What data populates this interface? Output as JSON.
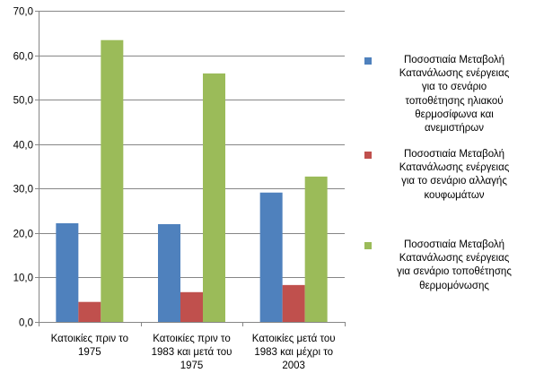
{
  "chart_data": {
    "type": "bar",
    "categories": [
      [
        "Κατοικίες πριν το",
        "1975"
      ],
      [
        "Κατοικίες πριν το",
        "1983 και μετά του",
        "1975"
      ],
      [
        "Κατοικίες μετά του",
        "1983 και μέχρι το",
        "2003"
      ]
    ],
    "series": [
      {
        "name": "Ποσοστιαία Μεταβολή Κατανάλωσης ενέργειας για το σενάριο τοποθέτησης ηλιακού θερμοσίφωνα και ανεμιστήρων",
        "name_lines": [
          "Ποσοστιαία Μεταβολή",
          "Κατανάλωσης ενέργειας",
          "για το σενάριο",
          "τοποθέτησης ηλιακού",
          "θερμοσίφωνα και",
          "ανεμιστήρων"
        ],
        "color": "#4F81BD",
        "values": [
          22.2,
          22.0,
          29.1
        ]
      },
      {
        "name": "Ποσοστιαία Μεταβολή Κατανάλωσης ενέργειας για το σενάριο αλλαγής κουφωμάτων",
        "name_lines": [
          "Ποσοστιαία Μεταβολή",
          "Κατανάλωσης ενέργειας",
          "για το σενάριο αλλαγής",
          "κουφωμάτων"
        ],
        "color": "#C0504D",
        "values": [
          4.5,
          6.7,
          8.3
        ]
      },
      {
        "name": "Ποσοστιαία Μεταβολή Κατανάλωσης ενέργειας για σενάριο τοποθέτησης θερμομόνωσης",
        "name_lines": [
          "Ποσοστιαία Μεταβολή",
          "Κατανάλωσης ενέργειας",
          "για σενάριο τοποθέτησης",
          "θερμομόνωσης"
        ],
        "color": "#9BBB59",
        "values": [
          63.4,
          55.9,
          32.7
        ]
      }
    ],
    "yticks": [
      "0,0",
      "10,0",
      "20,0",
      "30,0",
      "40,0",
      "50,0",
      "60,0",
      "70,0"
    ],
    "ylim": [
      0,
      70
    ],
    "ystep": 10,
    "grid": true,
    "legend_position": "right"
  }
}
